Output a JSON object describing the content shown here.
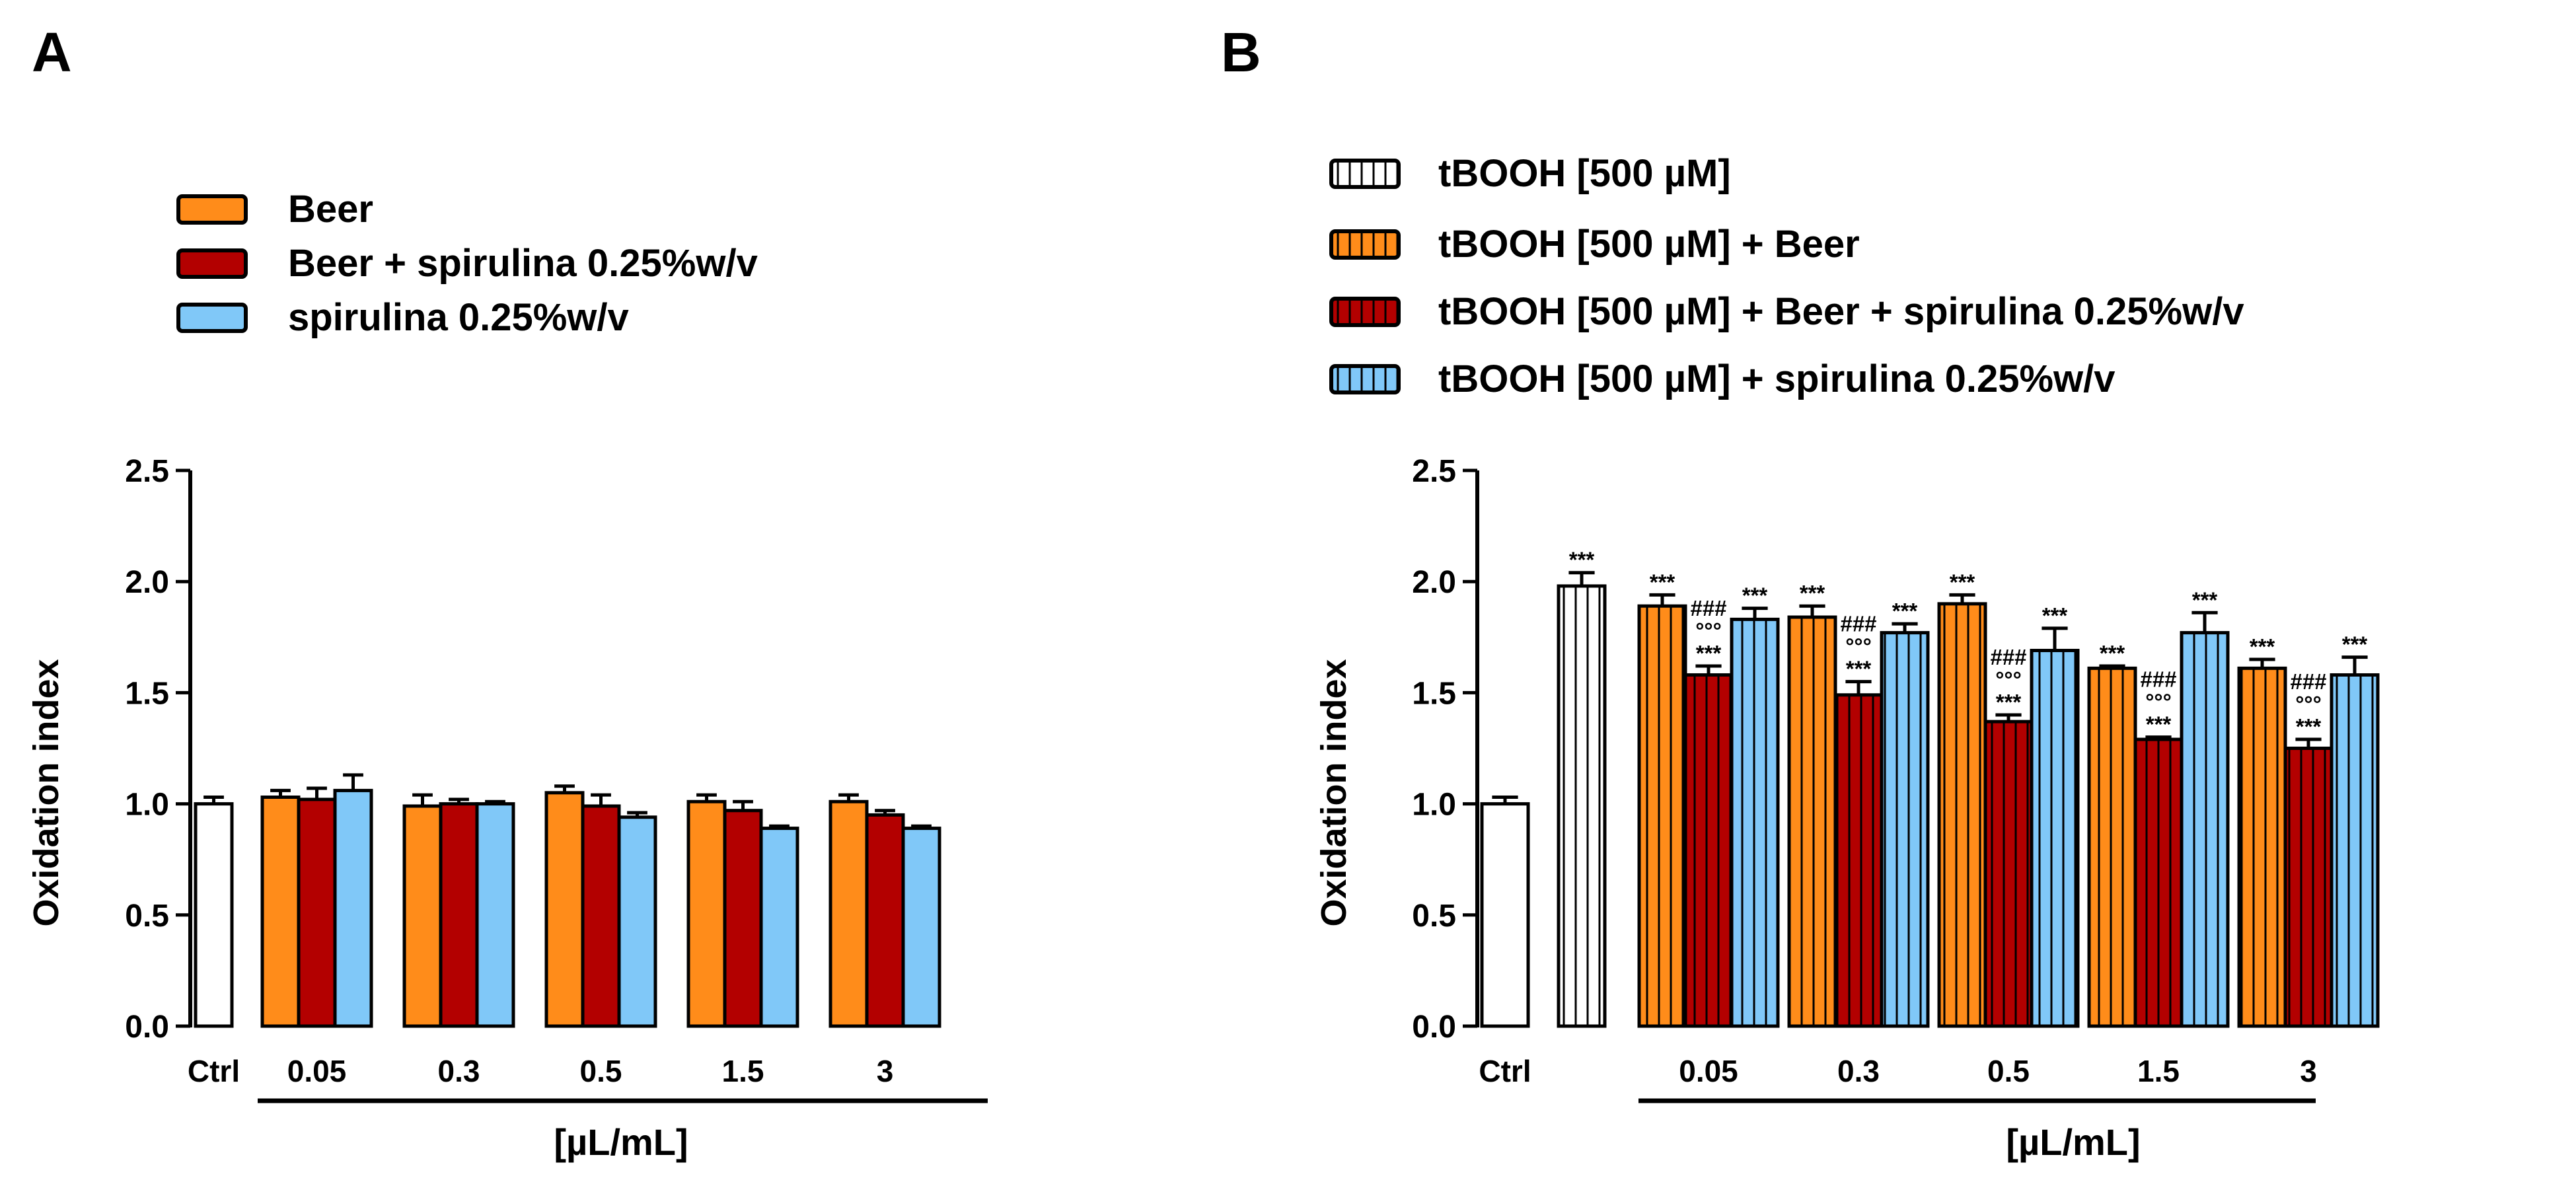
{
  "figure": {
    "panels": [
      "A",
      "B"
    ]
  },
  "colors": {
    "ctrl": "#ffffff",
    "beer": "#ff8c1a",
    "beer_spirulina": "#b30000",
    "spirulina": "#80c8f8",
    "outline": "#000000"
  },
  "chart_data": [
    {
      "panel": "A",
      "type": "bar",
      "ylabel": "Oxidation index",
      "xlabel": "[µL/mL]",
      "ylim": [
        0,
        2.5
      ],
      "yticks": [
        "0.0",
        "0.5",
        "1.0",
        "1.5",
        "2.0",
        "2.5"
      ],
      "ctrl": {
        "label": "Ctrl",
        "value": 1.0,
        "error": 0.03
      },
      "categories": [
        "0.05",
        "0.3",
        "0.5",
        "1.5",
        "3"
      ],
      "series": [
        {
          "name": "Beer",
          "values": [
            1.03,
            0.99,
            1.05,
            1.01,
            1.01
          ],
          "errors": [
            0.03,
            0.05,
            0.03,
            0.03,
            0.03
          ],
          "color_key": "beer",
          "hatch": false,
          "sig": [
            [],
            [],
            [],
            [],
            []
          ]
        },
        {
          "name": "Beer + spirulina 0.25%w/v",
          "values": [
            1.02,
            1.0,
            0.99,
            0.97,
            0.95
          ],
          "errors": [
            0.05,
            0.02,
            0.05,
            0.04,
            0.02
          ],
          "color_key": "beer_spirulina",
          "hatch": false,
          "sig": [
            [],
            [],
            [],
            [],
            []
          ]
        },
        {
          "name": "spirulina 0.25%w/v",
          "values": [
            1.06,
            1.0,
            0.94,
            0.89,
            0.89
          ],
          "errors": [
            0.07,
            0.01,
            0.02,
            0.01,
            0.01
          ],
          "color_key": "spirulina",
          "hatch": false,
          "sig": [
            [],
            [],
            [],
            [],
            []
          ]
        }
      ],
      "legend": [
        "Beer",
        "Beer + spirulina 0.25%w/v",
        "spirulina 0.25%w/v"
      ]
    },
    {
      "panel": "B",
      "type": "bar",
      "ylabel": "Oxidation index",
      "xlabel": "[µL/mL]",
      "ylim": [
        0,
        2.5
      ],
      "yticks": [
        "0.0",
        "0.5",
        "1.0",
        "1.5",
        "2.0",
        "2.5"
      ],
      "ctrl": {
        "label": "Ctrl",
        "value": 1.0,
        "error": 0.03
      },
      "tbooh": {
        "name": "tBOOH [500 µM]",
        "value": 1.98,
        "error": 0.06,
        "sig": [
          "***"
        ]
      },
      "categories": [
        "0.05",
        "0.3",
        "0.5",
        "1.5",
        "3"
      ],
      "series": [
        {
          "name": "tBOOH [500 µM] + Beer",
          "values": [
            1.89,
            1.84,
            1.9,
            1.61,
            1.61
          ],
          "errors": [
            0.05,
            0.05,
            0.04,
            0.01,
            0.04
          ],
          "color_key": "beer",
          "hatch": true,
          "sig": [
            [
              "***"
            ],
            [
              "***"
            ],
            [
              "***"
            ],
            [
              "***"
            ],
            [
              "***"
            ]
          ]
        },
        {
          "name": "tBOOH [500 µM] + Beer + spirulina 0.25%w/v",
          "values": [
            1.58,
            1.49,
            1.37,
            1.29,
            1.25
          ],
          "errors": [
            0.04,
            0.06,
            0.03,
            0.01,
            0.04
          ],
          "color_key": "beer_spirulina",
          "hatch": true,
          "sig": [
            [
              "###",
              "°°°",
              "***"
            ],
            [
              "###",
              "°°°",
              "***"
            ],
            [
              "###",
              "°°°",
              "***"
            ],
            [
              "###",
              "°°°",
              "***"
            ],
            [
              "###",
              "°°°",
              "***"
            ]
          ]
        },
        {
          "name": "tBOOH [500 µM] + spirulina 0.25%w/v",
          "values": [
            1.83,
            1.77,
            1.69,
            1.77,
            1.58
          ],
          "errors": [
            0.05,
            0.04,
            0.1,
            0.09,
            0.08
          ],
          "color_key": "spirulina",
          "hatch": true,
          "sig": [
            [
              "***"
            ],
            [
              "***"
            ],
            [
              "***"
            ],
            [
              "***"
            ],
            [
              "***"
            ]
          ]
        }
      ],
      "legend": [
        "tBOOH [500 µM]",
        "tBOOH [500 µM] + Beer",
        "tBOOH [500 µM] + Beer + spirulina 0.25%w/v",
        "tBOOH [500 µM] + spirulina 0.25%w/v"
      ]
    }
  ]
}
